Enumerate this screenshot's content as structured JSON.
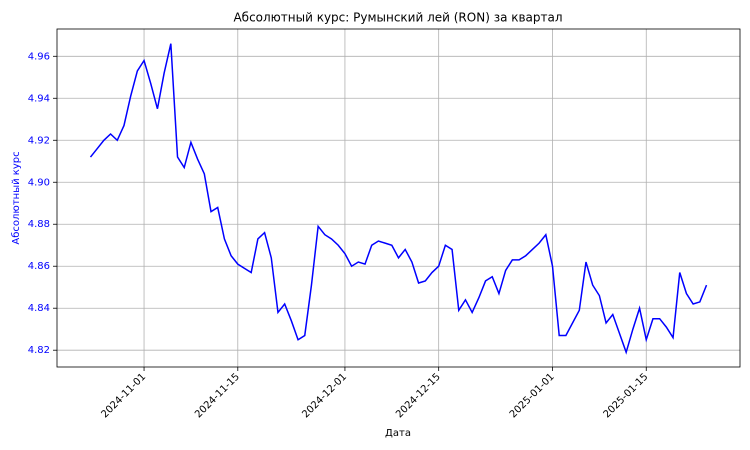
{
  "chart_data": {
    "type": "line",
    "title": "Абсолютный курс: Румынский лей (RON) за квартал",
    "x_label": "Дата",
    "y_label": "Абсолютный курс",
    "x": [
      "2024-10-24",
      "2024-10-25",
      "2024-10-26",
      "2024-10-27",
      "2024-10-28",
      "2024-10-29",
      "2024-10-30",
      "2024-10-31",
      "2024-11-01",
      "2024-11-02",
      "2024-11-03",
      "2024-11-04",
      "2024-11-05",
      "2024-11-06",
      "2024-11-07",
      "2024-11-08",
      "2024-11-09",
      "2024-11-10",
      "2024-11-11",
      "2024-11-12",
      "2024-11-13",
      "2024-11-14",
      "2024-11-15",
      "2024-11-16",
      "2024-11-17",
      "2024-11-18",
      "2024-11-19",
      "2024-11-20",
      "2024-11-21",
      "2024-11-22",
      "2024-11-23",
      "2024-11-24",
      "2024-11-25",
      "2024-11-26",
      "2024-11-27",
      "2024-11-28",
      "2024-11-29",
      "2024-11-30",
      "2024-12-01",
      "2024-12-02",
      "2024-12-03",
      "2024-12-04",
      "2024-12-05",
      "2024-12-06",
      "2024-12-07",
      "2024-12-08",
      "2024-12-09",
      "2024-12-10",
      "2024-12-11",
      "2024-12-12",
      "2024-12-13",
      "2024-12-14",
      "2024-12-15",
      "2024-12-16",
      "2024-12-17",
      "2024-12-18",
      "2024-12-19",
      "2024-12-20",
      "2024-12-21",
      "2024-12-22",
      "2024-12-23",
      "2024-12-24",
      "2024-12-25",
      "2024-12-26",
      "2024-12-27",
      "2024-12-28",
      "2024-12-29",
      "2024-12-30",
      "2024-12-31",
      "2025-01-01",
      "2025-01-02",
      "2025-01-03",
      "2025-01-04",
      "2025-01-05",
      "2025-01-06",
      "2025-01-07",
      "2025-01-08",
      "2025-01-09",
      "2025-01-10",
      "2025-01-11",
      "2025-01-12",
      "2025-01-13",
      "2025-01-14",
      "2025-01-15",
      "2025-01-16",
      "2025-01-17",
      "2025-01-18",
      "2025-01-19",
      "2025-01-20",
      "2025-01-21",
      "2025-01-22",
      "2025-01-23",
      "2025-01-24"
    ],
    "series": [
      {
        "name": "RON",
        "color": "#0000ff",
        "values": [
          4.912,
          4.916,
          4.92,
          4.923,
          4.92,
          4.927,
          4.941,
          4.953,
          4.958,
          4.947,
          4.935,
          4.952,
          4.966,
          4.912,
          4.907,
          4.919,
          4.911,
          4.904,
          4.886,
          4.888,
          4.873,
          4.865,
          4.861,
          4.859,
          4.857,
          4.873,
          4.876,
          4.864,
          4.838,
          4.842,
          4.834,
          4.825,
          4.827,
          4.851,
          4.879,
          4.875,
          4.873,
          4.87,
          4.866,
          4.86,
          4.862,
          4.861,
          4.87,
          4.872,
          4.871,
          4.87,
          4.864,
          4.868,
          4.862,
          4.852,
          4.853,
          4.857,
          4.86,
          4.87,
          4.868,
          4.839,
          4.844,
          4.838,
          4.845,
          4.853,
          4.855,
          4.847,
          4.858,
          4.863,
          4.863,
          4.865,
          4.868,
          4.871,
          4.875,
          4.86,
          4.827,
          4.827,
          4.833,
          4.839,
          4.862,
          4.851,
          4.846,
          4.833,
          4.837,
          4.828,
          4.819,
          4.83,
          4.84,
          4.825,
          4.835,
          4.835,
          4.831,
          4.826,
          4.857,
          4.847,
          4.842,
          4.843,
          4.851
        ]
      }
    ],
    "xlim": [
      "2024-10-19",
      "2025-01-29"
    ],
    "xticks": [
      "2024-11-01",
      "2024-11-15",
      "2024-12-01",
      "2024-12-15",
      "2025-01-01",
      "2025-01-15"
    ],
    "ylim": [
      4.812,
      4.973
    ],
    "yticks": [
      4.82,
      4.84,
      4.86,
      4.88,
      {
        "value": 4.9,
        "label": "4.90"
      },
      4.92,
      4.94,
      4.96
    ],
    "grid": true
  }
}
